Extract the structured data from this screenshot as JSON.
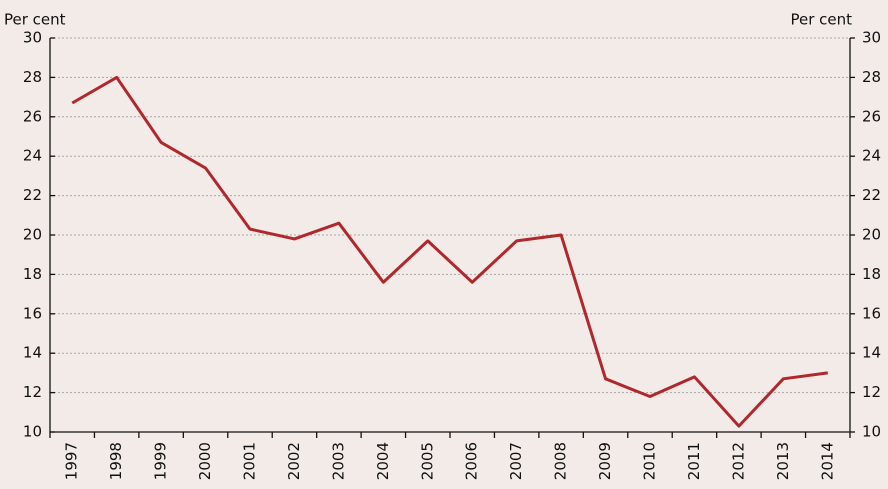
{
  "chart_data": {
    "type": "line",
    "y_label": "Per cent",
    "y2_label": "Per cent",
    "categories": [
      "1997",
      "1998",
      "1999",
      "2000",
      "2001",
      "2002",
      "2003",
      "2004",
      "2005",
      "2006",
      "2007",
      "2008",
      "2009",
      "2010",
      "2011",
      "2012",
      "2013",
      "2014"
    ],
    "series": [
      {
        "color": "#b0282e",
        "values": [
          26.7,
          28.0,
          24.7,
          23.4,
          20.3,
          19.8,
          20.6,
          17.6,
          19.7,
          17.6,
          19.7,
          20.0,
          12.7,
          11.8,
          12.8,
          10.3,
          12.7,
          13.0
        ]
      }
    ],
    "ylim": [
      10,
      30
    ],
    "yticks": [
      10,
      12,
      14,
      16,
      18,
      20,
      22,
      24,
      26,
      28,
      30
    ],
    "y2lim": [
      10,
      30
    ],
    "y2ticks": [
      10,
      12,
      14,
      16,
      18,
      20,
      22,
      24,
      26,
      28,
      30
    ],
    "grid": true
  }
}
